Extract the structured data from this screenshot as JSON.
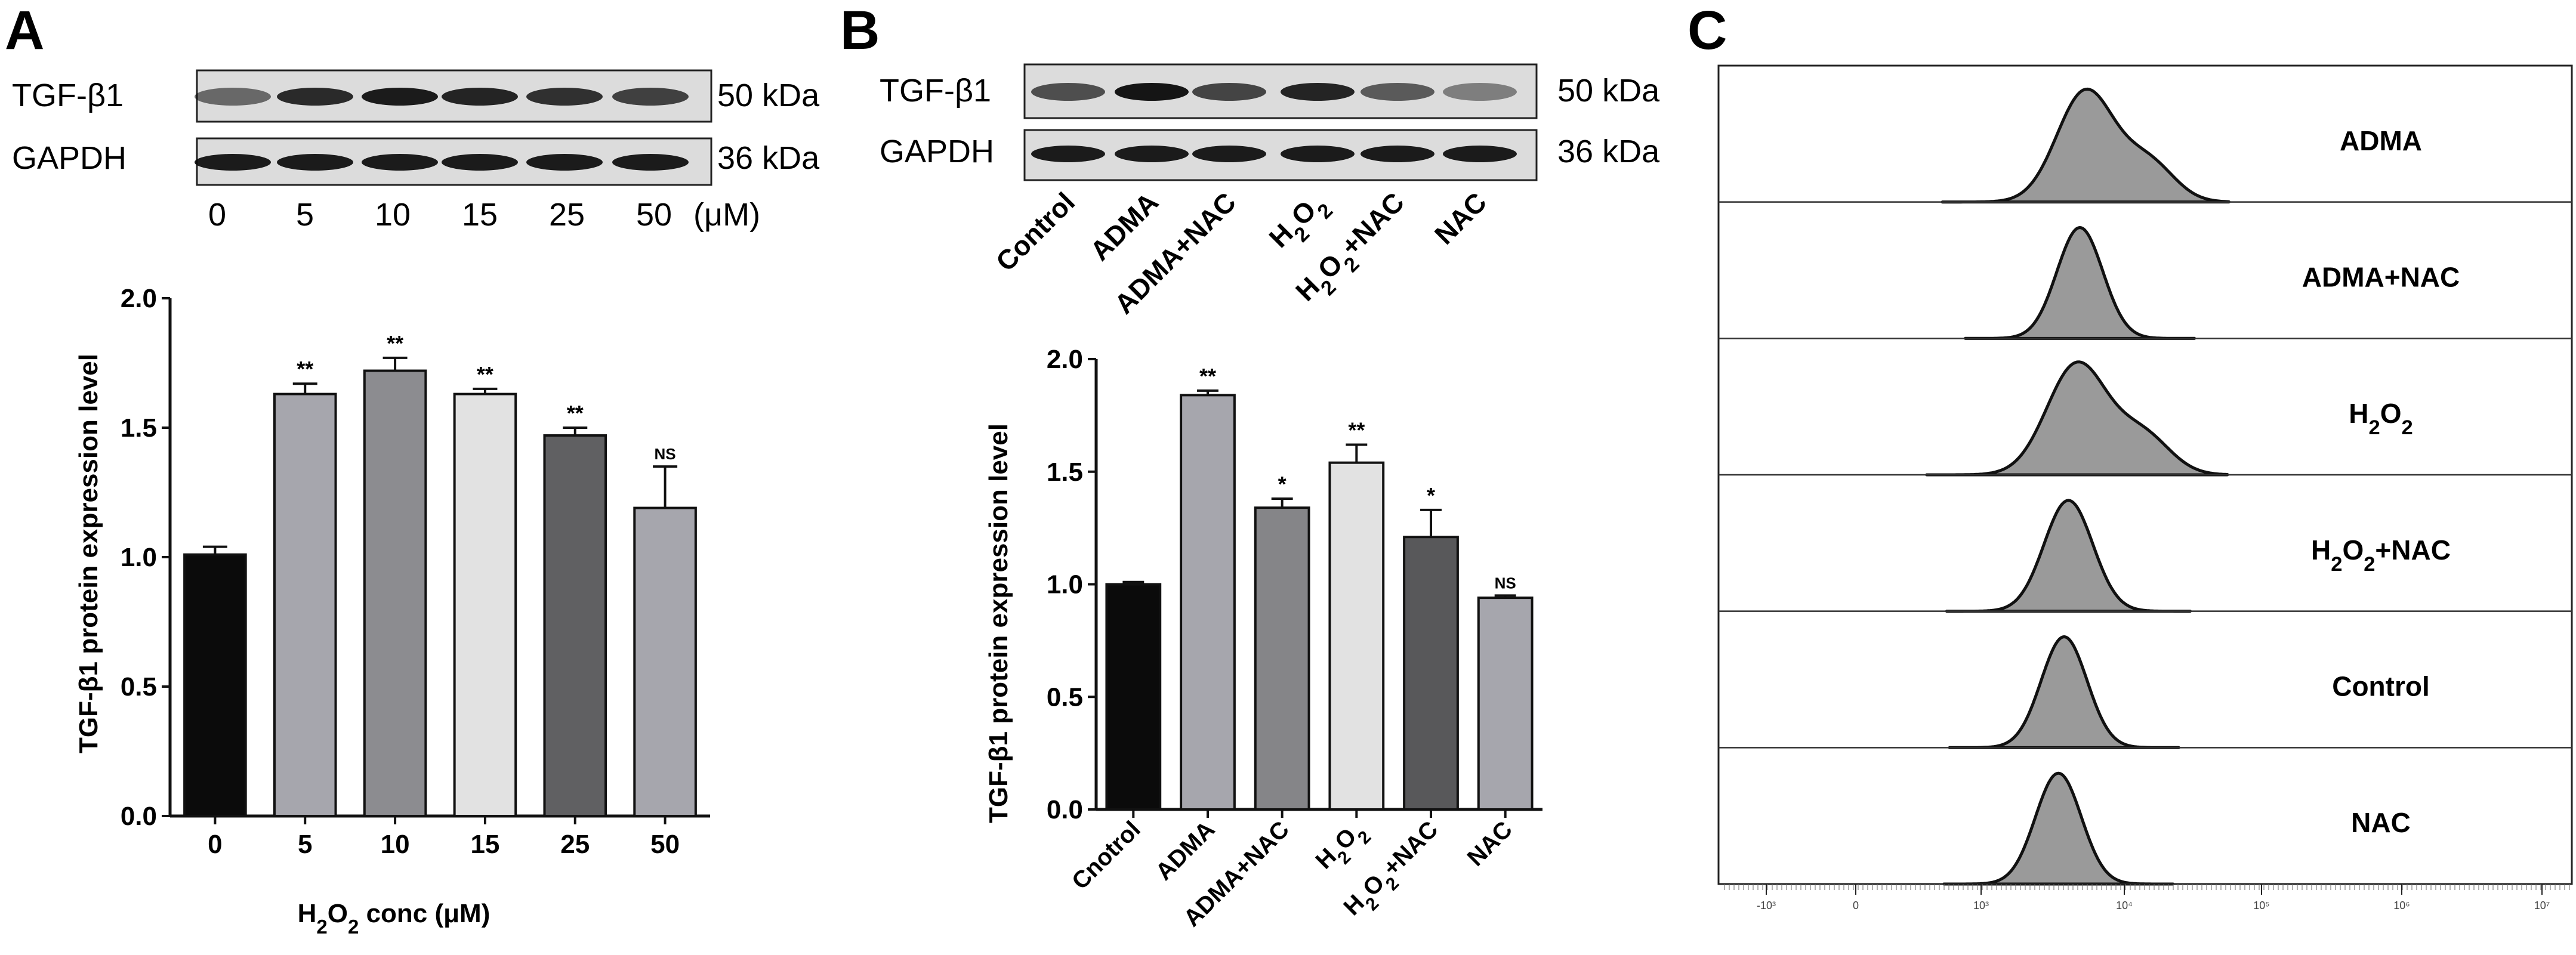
{
  "panels": [
    {
      "letter": "A"
    },
    {
      "letter": "B"
    },
    {
      "letter": "C"
    }
  ],
  "blot_a": {
    "rows": [
      "TGF-β1",
      "GAPDH"
    ],
    "sizes": [
      "50 kDa",
      "36 kDa"
    ],
    "lanes": [
      "0",
      "5",
      "10",
      "15",
      "25",
      "50"
    ],
    "unit": "(μM)"
  },
  "blot_b": {
    "rows": [
      "TGF-β1",
      "GAPDH"
    ],
    "sizes": [
      "50 kDa",
      "36 kDa"
    ],
    "lanes": [
      "Control",
      "ADMA",
      "ADMA+NAC",
      "H2O2",
      "H2O2+NAC",
      "NAC"
    ]
  },
  "chart_data": [
    {
      "type": "bar",
      "panel": "A",
      "categories": [
        "0",
        "5",
        "10",
        "15",
        "25",
        "50"
      ],
      "values": [
        1.01,
        1.63,
        1.72,
        1.63,
        1.47,
        1.19
      ],
      "errors": [
        0.03,
        0.04,
        0.05,
        0.02,
        0.03,
        0.16
      ],
      "significance": [
        "",
        "**",
        "**",
        "**",
        "**",
        "NS"
      ],
      "colors": [
        "#0b0b0b",
        "#a6a6ad",
        "#8c8c90",
        "#e2e2e2",
        "#606062",
        "#a6a6ad"
      ],
      "ylabel": "TGF-β1 protein expression level",
      "xlabel": "H2O2 conc (μM)",
      "ylim": [
        0,
        2.0
      ],
      "yticks": [
        "0.0",
        "0.5",
        "1.0",
        "1.5",
        "2.0"
      ]
    },
    {
      "type": "bar",
      "panel": "B",
      "categories": [
        "Cnotrol",
        "ADMA",
        "ADMA+NAC",
        "H2O2",
        "H2O2+NAC",
        "NAC"
      ],
      "values": [
        1.0,
        1.84,
        1.34,
        1.54,
        1.21,
        0.94
      ],
      "errors": [
        0.01,
        0.02,
        0.04,
        0.08,
        0.12,
        0.01
      ],
      "significance": [
        "",
        "**",
        "*",
        "**",
        "*",
        "NS"
      ],
      "colors": [
        "#0b0b0b",
        "#a6a6ad",
        "#858588",
        "#e2e2e2",
        "#58585a",
        "#a6a6ad"
      ],
      "ylabel": "TGF-β1 protein expression level",
      "ylim": [
        0,
        2.0
      ],
      "yticks": [
        "0.0",
        "0.5",
        "1.0",
        "1.5",
        "2.0"
      ]
    },
    {
      "type": "area",
      "panel": "C",
      "series": [
        {
          "name": "ADMA",
          "peak_log": 3.73,
          "width": 0.2,
          "shoulder": true
        },
        {
          "name": "ADMA+NAC",
          "peak_log": 3.69,
          "width": 0.16,
          "shoulder": false
        },
        {
          "name": "H2O2",
          "peak_log": 3.67,
          "width": 0.21,
          "shoulder": true
        },
        {
          "name": "H2O2+NAC",
          "peak_log": 3.61,
          "width": 0.17,
          "shoulder": false
        },
        {
          "name": "Control",
          "peak_log": 3.58,
          "width": 0.16,
          "shoulder": false
        },
        {
          "name": "NAC",
          "peak_log": 3.54,
          "width": 0.16,
          "shoulder": false
        }
      ],
      "xticks": [
        "-10³",
        "0",
        "10³",
        "10⁴",
        "10⁵",
        "10⁶",
        "10⁷"
      ],
      "fill": "#9a9a9a"
    }
  ]
}
